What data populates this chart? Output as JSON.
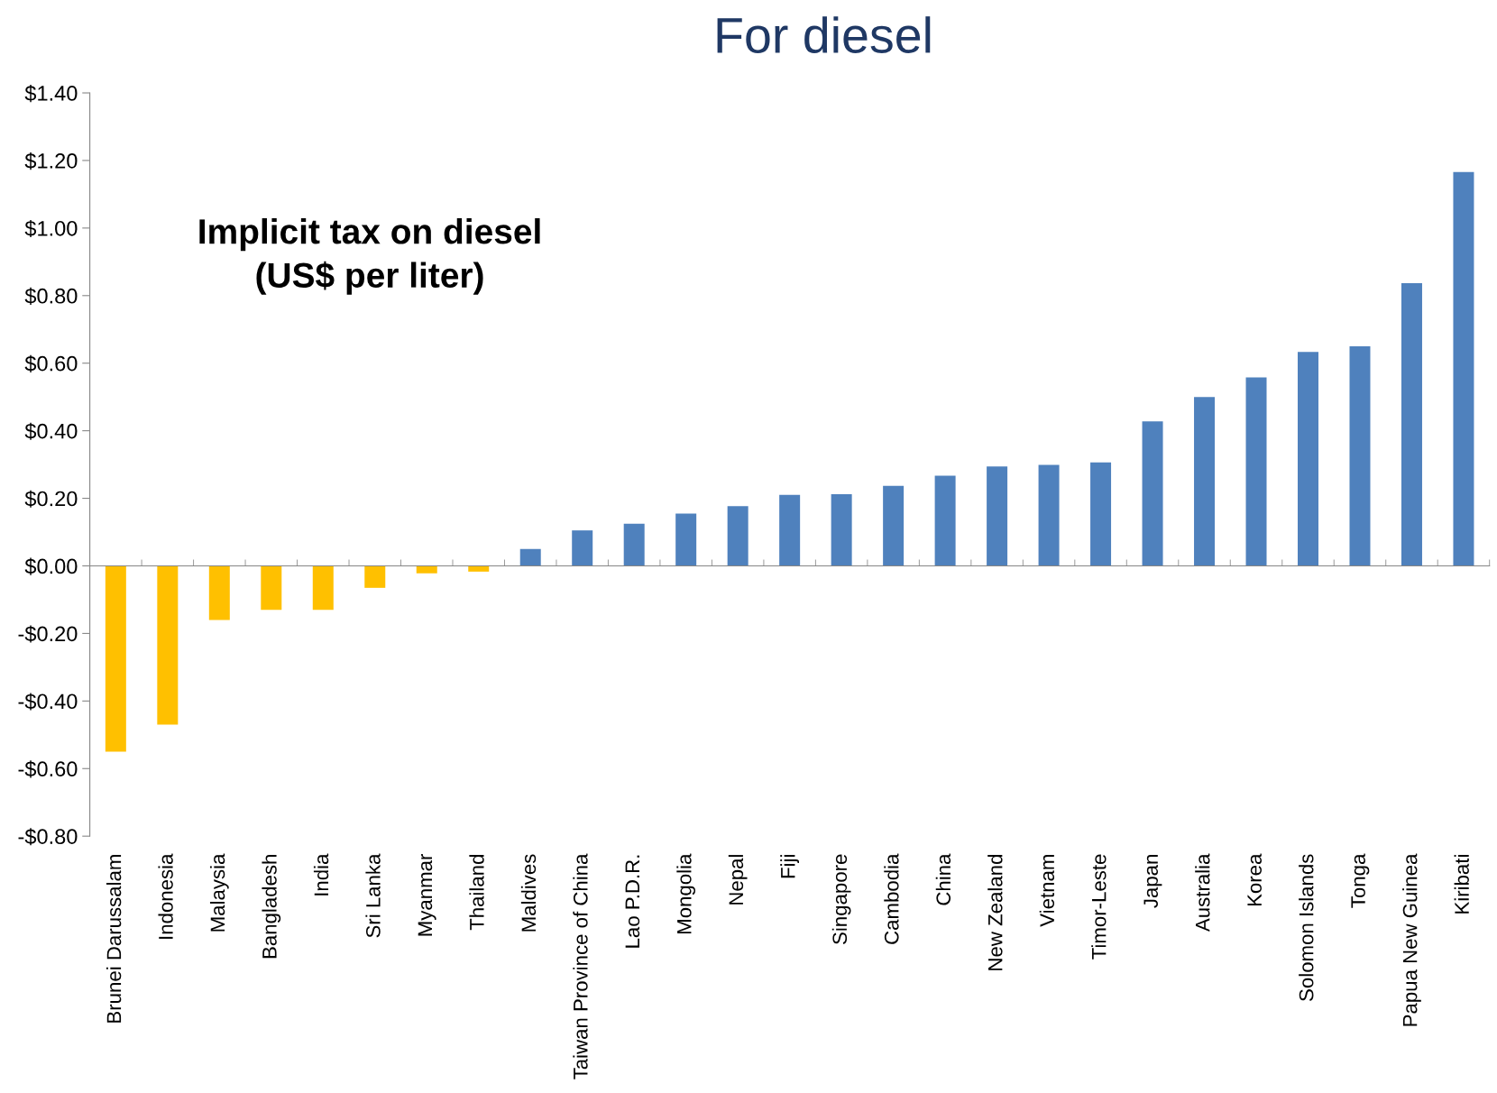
{
  "chart_data": {
    "type": "bar",
    "title": "For diesel",
    "categories": [
      "Brunei Darussalam",
      "Indonesia",
      "Malaysia",
      "Bangladesh",
      "India",
      "Sri Lanka",
      "Myanmar",
      "Thailand",
      "Maldives",
      "Taiwan Province of China",
      "Lao P.D.R.",
      "Mongolia",
      "Nepal",
      "Fiji",
      "Singapore",
      "Cambodia",
      "China",
      "New Zealand",
      "Vietnam",
      "Timor-Leste",
      "Japan",
      "Australia",
      "Korea",
      "Solomon Islands",
      "Tonga",
      "Papua New Guinea",
      "Kiribati"
    ],
    "values": [
      -0.55,
      -0.47,
      -0.16,
      -0.13,
      -0.13,
      -0.065,
      -0.022,
      -0.017,
      0.05,
      0.105,
      0.125,
      0.155,
      0.177,
      0.21,
      0.212,
      0.237,
      0.267,
      0.294,
      0.299,
      0.306,
      0.428,
      0.5,
      0.558,
      0.633,
      0.65,
      0.837,
      1.166
    ],
    "colors": [
      "#ffc000",
      "#ffc000",
      "#ffc000",
      "#ffc000",
      "#ffc000",
      "#ffc000",
      "#ffc000",
      "#ffc000",
      "#4f81bd",
      "#4f81bd",
      "#4f81bd",
      "#4f81bd",
      "#4f81bd",
      "#4f81bd",
      "#4f81bd",
      "#4f81bd",
      "#4f81bd",
      "#4f81bd",
      "#4f81bd",
      "#4f81bd",
      "#4f81bd",
      "#4f81bd",
      "#4f81bd",
      "#4f81bd",
      "#4f81bd",
      "#4f81bd",
      "#4f81bd"
    ],
    "ylim": [
      -0.8,
      1.4
    ],
    "yticks": [
      {
        "value": -0.8,
        "label": "-$0.80"
      },
      {
        "value": -0.6,
        "label": "-$0.60"
      },
      {
        "value": -0.4,
        "label": "-$0.40"
      },
      {
        "value": -0.2,
        "label": "-$0.20"
      },
      {
        "value": 0,
        "label": "$0.00"
      },
      {
        "value": 0.2,
        "label": "$0.20"
      },
      {
        "value": 0.4,
        "label": "$0.40"
      },
      {
        "value": 0.6,
        "label": "$0.60"
      },
      {
        "value": 0.8,
        "label": "$0.80"
      },
      {
        "value": 1.0,
        "label": "$1.00"
      },
      {
        "value": 1.2,
        "label": "$1.20"
      },
      {
        "value": 1.4,
        "label": "$1.40"
      }
    ],
    "annotations": [
      "Implicit tax on diesel\n(US$ per liter)"
    ],
    "legend": false
  }
}
